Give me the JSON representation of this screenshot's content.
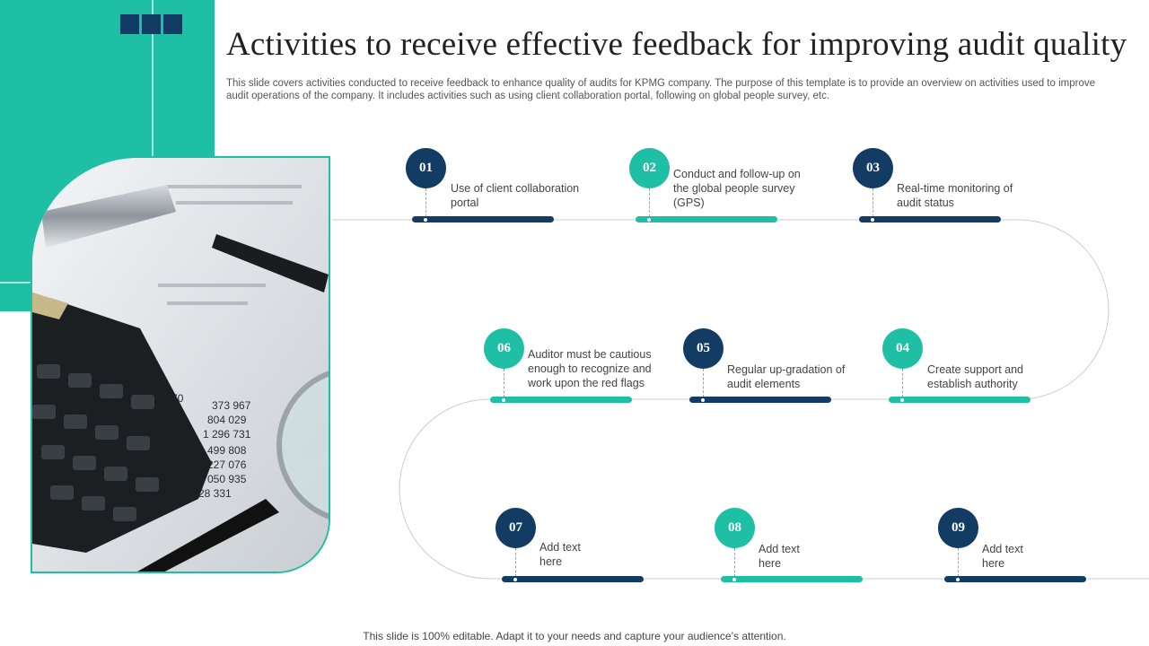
{
  "header": {
    "title": "Activities to receive effective feedback for improving audit quality",
    "description": "This slide covers activities conducted to receive feedback to enhance quality of audits for KPMG company. The purpose of this template is to provide an overview on activities used to improve audit operations of the company. It includes activities such as using client collaboration portal, following on global people survey, etc."
  },
  "steps": [
    {
      "number": "01",
      "label": "Use of client collaboration portal",
      "color": "#123c63"
    },
    {
      "number": "02",
      "label": "Conduct and follow-up on the global people survey (GPS)",
      "color": "#1fbfa5"
    },
    {
      "number": "03",
      "label": "Real-time monitoring of audit status",
      "color": "#123c63"
    },
    {
      "number": "04",
      "label": "Create support and establish authority",
      "color": "#1fbfa5"
    },
    {
      "number": "05",
      "label": "Regular up-gradation of audit elements",
      "color": "#123c63"
    },
    {
      "number": "06",
      "label": "Auditor must be cautious enough to recognize and work upon the red flags",
      "color": "#1fbfa5"
    },
    {
      "number": "07",
      "label": "Add text here",
      "color": "#123c63"
    },
    {
      "number": "08",
      "label": "Add text here",
      "color": "#1fbfa5"
    },
    {
      "number": "09",
      "label": "Add text here",
      "color": "#123c63"
    }
  ],
  "footer": {
    "note": "This slide is 100% editable. Adapt it to your needs and capture your audience’s attention."
  },
  "colors": {
    "navy": "#123c63",
    "teal": "#1fbfa5"
  }
}
